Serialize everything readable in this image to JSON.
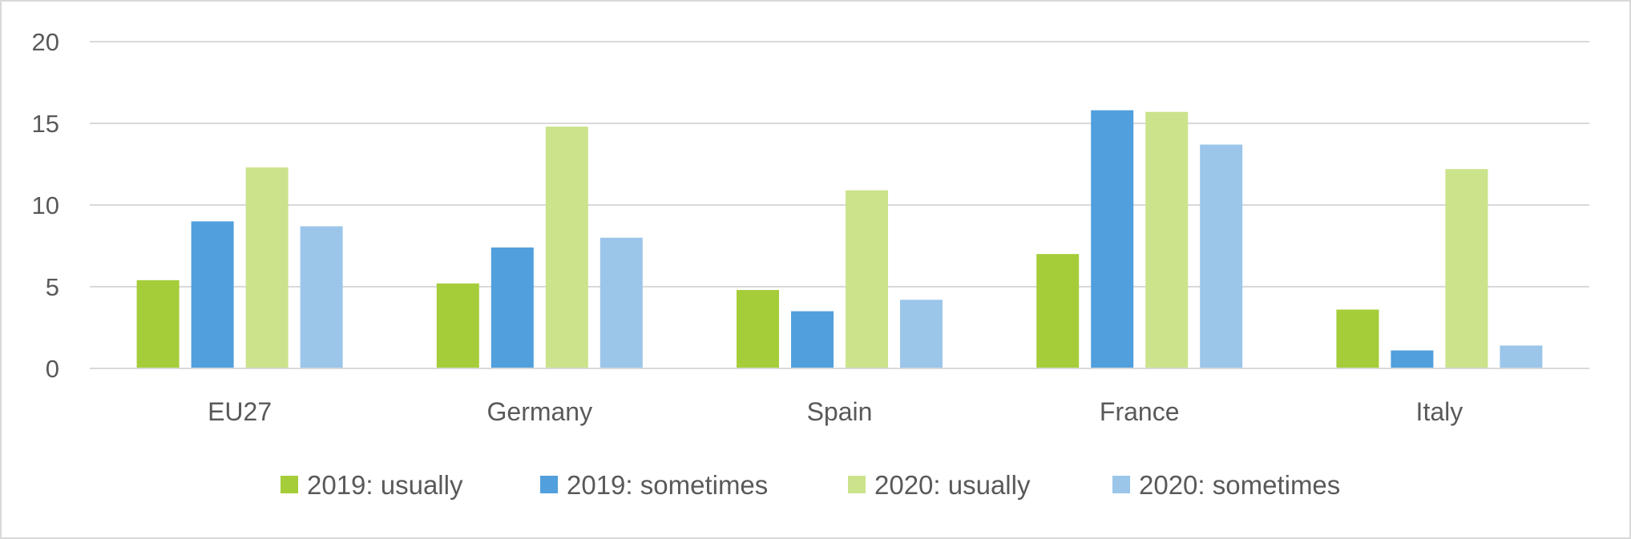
{
  "chart_data": {
    "type": "bar",
    "categories": [
      "EU27",
      "Germany",
      "Spain",
      "France",
      "Italy"
    ],
    "series": [
      {
        "name": "2019: usually",
        "color": "#a5cd39",
        "values": [
          5.4,
          5.2,
          4.8,
          7.0,
          3.6
        ]
      },
      {
        "name": "2019: sometimes",
        "color": "#519fdc",
        "values": [
          9.0,
          7.4,
          3.5,
          15.8,
          1.1
        ]
      },
      {
        "name": "2020: usually",
        "color": "#cbe38b",
        "values": [
          12.3,
          14.8,
          10.9,
          15.7,
          12.2
        ]
      },
      {
        "name": "2020: sometimes",
        "color": "#9bc6ea",
        "values": [
          8.7,
          8.0,
          4.2,
          13.7,
          1.4
        ]
      }
    ],
    "yticks": [
      0,
      5,
      10,
      15,
      20
    ],
    "ylim": [
      0,
      20
    ],
    "grid": true,
    "legend_position": "bottom"
  }
}
